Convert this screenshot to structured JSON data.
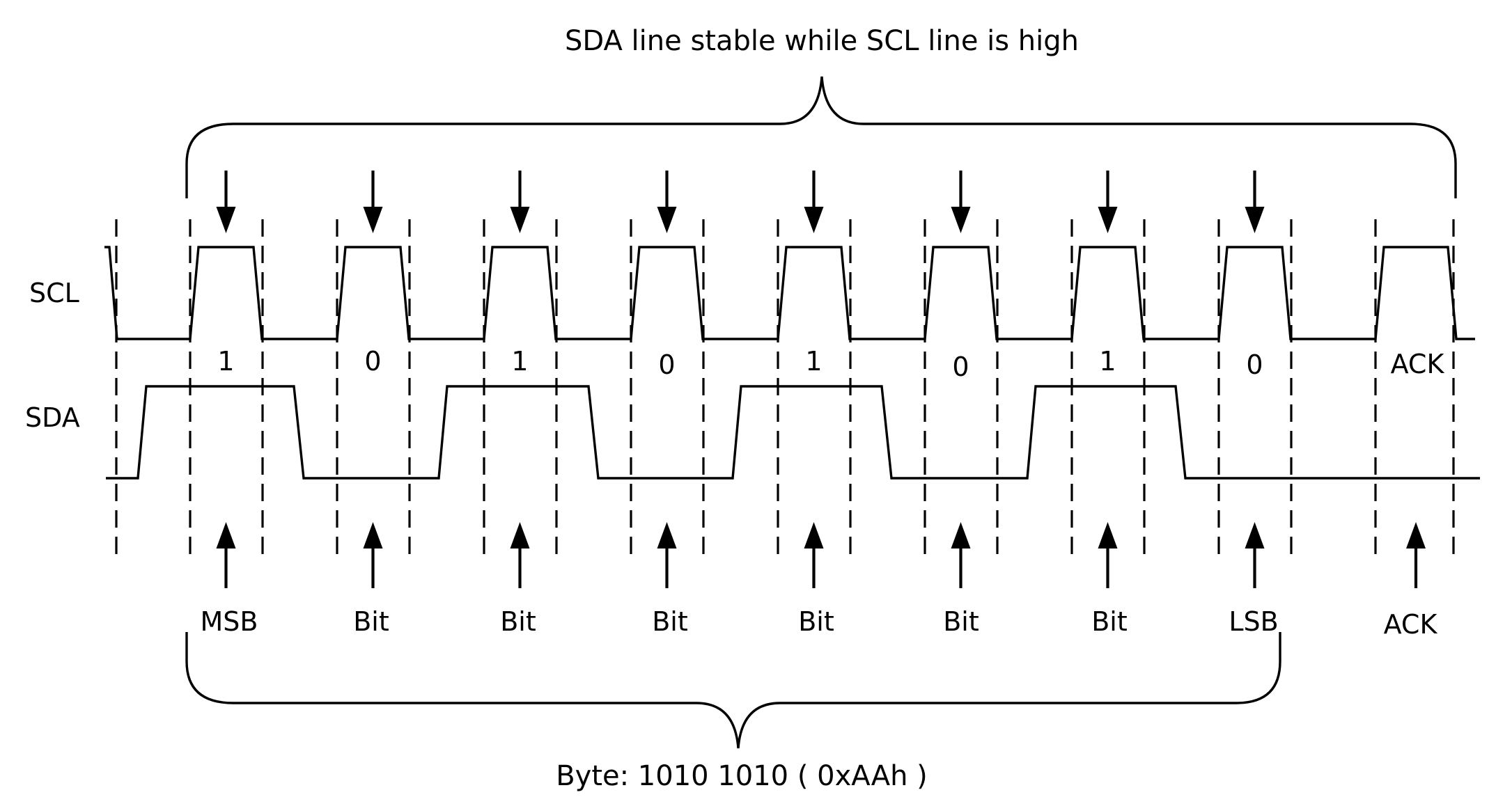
{
  "top_annotation": "SDA line stable while SCL line is high",
  "bottom_annotation": "Byte: 1010 1010 ( 0xAAh )",
  "signals": {
    "scl": "SCL",
    "sda": "SDA"
  },
  "bits": [
    {
      "value": "1",
      "label": "MSB"
    },
    {
      "value": "0",
      "label": "Bit"
    },
    {
      "value": "1",
      "label": "Bit"
    },
    {
      "value": "0",
      "label": "Bit"
    },
    {
      "value": "1",
      "label": "Bit"
    },
    {
      "value": "0",
      "label": "Bit"
    },
    {
      "value": "1",
      "label": "Bit"
    },
    {
      "value": "0",
      "label": "LSB"
    }
  ],
  "ack": {
    "value": "ACK",
    "label": "ACK"
  }
}
